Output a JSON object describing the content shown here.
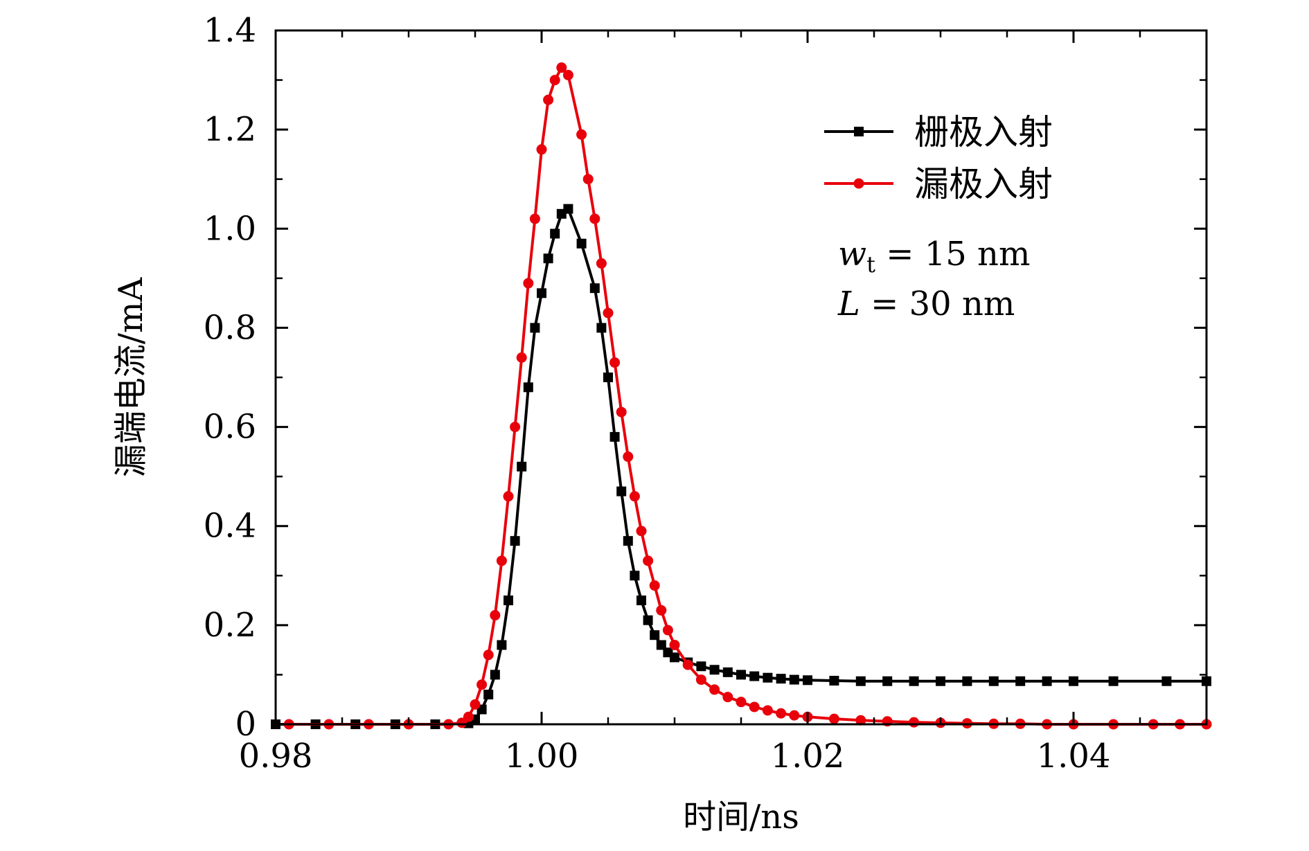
{
  "chart_data": {
    "type": "line",
    "title": "",
    "xlabel": "时间/ns",
    "ylabel": "漏端电流/mA",
    "xlim": [
      0.98,
      1.05
    ],
    "ylim": [
      0,
      1.4
    ],
    "x_ticks": [
      0.98,
      1.0,
      1.02,
      1.04
    ],
    "x_tick_labels": [
      "0.98",
      "1.00",
      "1.02",
      "1.04"
    ],
    "y_ticks": [
      0,
      0.2,
      0.4,
      0.6,
      0.8,
      1.0,
      1.2,
      1.4
    ],
    "y_tick_labels": [
      "0",
      "0.2",
      "0.4",
      "0.6",
      "0.8",
      "1.0",
      "1.2",
      "1.4"
    ],
    "grid": false,
    "legend_position": "top-right",
    "annotations": {
      "line1_var": "w",
      "line1_sub": "t",
      "line1_rest": " = 15 nm",
      "line2_var": "L",
      "line2_rest": " = 30 nm"
    },
    "series": [
      {
        "name": "栅极入射",
        "color": "#000000",
        "marker": "square",
        "x": [
          0.98,
          0.983,
          0.986,
          0.989,
          0.992,
          0.9945,
          0.995,
          0.9955,
          0.996,
          0.9965,
          0.997,
          0.9975,
          0.998,
          0.9985,
          0.999,
          0.9995,
          1.0,
          1.0005,
          1.001,
          1.0015,
          1.002,
          1.003,
          1.004,
          1.0045,
          1.005,
          1.0055,
          1.006,
          1.0065,
          1.007,
          1.0075,
          1.008,
          1.0085,
          1.009,
          1.0095,
          1.01,
          1.011,
          1.012,
          1.013,
          1.014,
          1.015,
          1.016,
          1.017,
          1.018,
          1.019,
          1.02,
          1.022,
          1.024,
          1.026,
          1.028,
          1.03,
          1.032,
          1.034,
          1.036,
          1.038,
          1.04,
          1.043,
          1.047,
          1.05
        ],
        "y": [
          0.0,
          0.0,
          0.0,
          0.0,
          0.0,
          0.002,
          0.01,
          0.03,
          0.06,
          0.1,
          0.16,
          0.25,
          0.37,
          0.52,
          0.68,
          0.8,
          0.87,
          0.94,
          0.99,
          1.03,
          1.04,
          0.97,
          0.88,
          0.8,
          0.7,
          0.58,
          0.47,
          0.37,
          0.3,
          0.25,
          0.21,
          0.18,
          0.16,
          0.145,
          0.135,
          0.125,
          0.117,
          0.11,
          0.105,
          0.1,
          0.097,
          0.094,
          0.092,
          0.09,
          0.089,
          0.088,
          0.087,
          0.087,
          0.087,
          0.087,
          0.087,
          0.087,
          0.087,
          0.087,
          0.087,
          0.087,
          0.087,
          0.087
        ]
      },
      {
        "name": "漏极入射",
        "color": "#e8000b",
        "marker": "circle",
        "x": [
          0.981,
          0.984,
          0.987,
          0.99,
          0.993,
          0.994,
          0.9945,
          0.995,
          0.9955,
          0.996,
          0.9965,
          0.997,
          0.9975,
          0.998,
          0.9985,
          0.999,
          0.9995,
          1.0,
          1.0005,
          1.001,
          1.0015,
          1.002,
          1.003,
          1.0035,
          1.004,
          1.0045,
          1.005,
          1.0055,
          1.006,
          1.0065,
          1.007,
          1.0075,
          1.008,
          1.0085,
          1.009,
          1.0095,
          1.01,
          1.011,
          1.012,
          1.013,
          1.014,
          1.015,
          1.016,
          1.017,
          1.018,
          1.019,
          1.02,
          1.022,
          1.024,
          1.026,
          1.028,
          1.03,
          1.032,
          1.034,
          1.036,
          1.038,
          1.04,
          1.043,
          1.046,
          1.048,
          1.05
        ],
        "y": [
          0.0,
          0.0,
          0.0,
          0.0,
          0.0,
          0.003,
          0.015,
          0.04,
          0.08,
          0.14,
          0.22,
          0.33,
          0.46,
          0.6,
          0.74,
          0.89,
          1.02,
          1.16,
          1.26,
          1.3,
          1.325,
          1.31,
          1.19,
          1.1,
          1.02,
          0.93,
          0.83,
          0.73,
          0.63,
          0.54,
          0.46,
          0.39,
          0.33,
          0.28,
          0.23,
          0.19,
          0.16,
          0.12,
          0.09,
          0.07,
          0.055,
          0.045,
          0.035,
          0.028,
          0.022,
          0.018,
          0.015,
          0.011,
          0.008,
          0.006,
          0.004,
          0.003,
          0.002,
          0.001,
          0.001,
          0.0,
          0.0,
          0.0,
          0.0,
          0.0,
          0.0
        ]
      }
    ]
  }
}
